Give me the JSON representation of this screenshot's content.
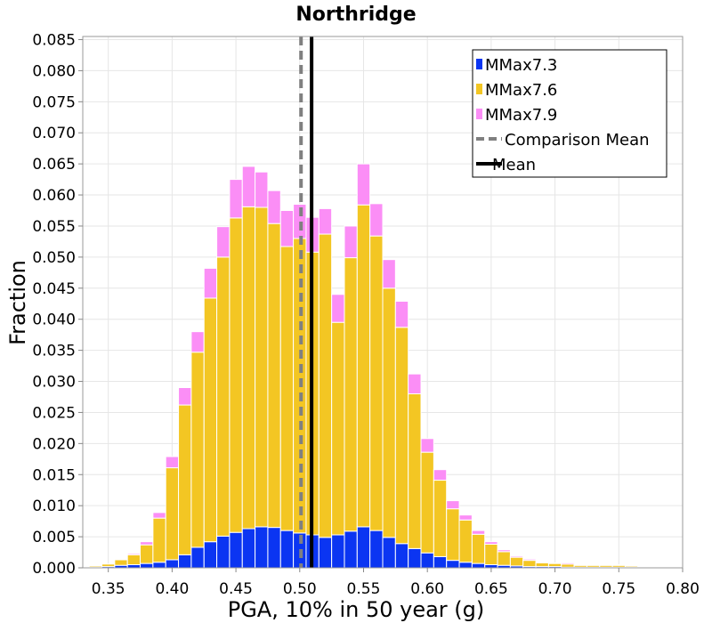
{
  "chart_data": {
    "type": "bar",
    "stacked": true,
    "title": "Northridge",
    "xlabel": "PGA, 10% in 50 year (g)",
    "ylabel": "Fraction",
    "xlim": [
      0.33,
      0.8
    ],
    "ylim": [
      0,
      0.0855
    ],
    "bin_width": 0.01,
    "grid": true,
    "legend_position": "top-right",
    "x_ticks": [
      "0.35",
      "0.40",
      "0.45",
      "0.50",
      "0.55",
      "0.60",
      "0.65",
      "0.70",
      "0.75",
      "0.80"
    ],
    "y_ticks": [
      "0.000",
      "0.005",
      "0.010",
      "0.015",
      "0.020",
      "0.025",
      "0.030",
      "0.035",
      "0.040",
      "0.045",
      "0.050",
      "0.055",
      "0.060",
      "0.065",
      "0.070",
      "0.075",
      "0.080",
      "0.085"
    ],
    "x": [
      0.34,
      0.35,
      0.36,
      0.37,
      0.38,
      0.39,
      0.4,
      0.41,
      0.42,
      0.43,
      0.44,
      0.45,
      0.46,
      0.47,
      0.48,
      0.49,
      0.5,
      0.51,
      0.52,
      0.53,
      0.54,
      0.55,
      0.56,
      0.57,
      0.58,
      0.59,
      0.6,
      0.61,
      0.62,
      0.63,
      0.64,
      0.65,
      0.66,
      0.67,
      0.68,
      0.69,
      0.7,
      0.71,
      0.72,
      0.73,
      0.74,
      0.75,
      0.76,
      0.77,
      0.78
    ],
    "series": [
      {
        "name": "MMax7.3",
        "color": "#0b35f2",
        "values": [
          0.0001,
          0.0002,
          0.0004,
          0.0005,
          0.0007,
          0.0009,
          0.0013,
          0.0021,
          0.0033,
          0.0042,
          0.0051,
          0.0057,
          0.0063,
          0.0066,
          0.0065,
          0.006,
          0.0056,
          0.0053,
          0.0049,
          0.0053,
          0.0059,
          0.0066,
          0.006,
          0.0049,
          0.0039,
          0.0031,
          0.0024,
          0.0018,
          0.0012,
          0.0009,
          0.0007,
          0.0005,
          0.0004,
          0.0003,
          0.0002,
          0.0002,
          0.0002,
          0.0001,
          0.0001,
          0.0001,
          0.0001,
          0.0001,
          0.0001,
          0.0001,
          0.0001
        ]
      },
      {
        "name": "MMax7.6",
        "color": "#f3c623",
        "values": [
          0.0002,
          0.0004,
          0.0009,
          0.0016,
          0.003,
          0.0071,
          0.0148,
          0.0241,
          0.0314,
          0.0392,
          0.0449,
          0.0506,
          0.0518,
          0.0514,
          0.0489,
          0.0457,
          0.0474,
          0.0455,
          0.0488,
          0.0342,
          0.044,
          0.0518,
          0.0474,
          0.0401,
          0.0348,
          0.0249,
          0.0162,
          0.0123,
          0.0083,
          0.0068,
          0.0047,
          0.0033,
          0.0022,
          0.0014,
          0.001,
          0.0006,
          0.0005,
          0.0005,
          0.0003,
          0.0003,
          0.0003,
          0.0003,
          0.0002,
          0.0001,
          0.0001
        ]
      },
      {
        "name": "MMax7.9",
        "color": "#fb8ef6",
        "values": [
          0.0,
          0.0,
          0.0001,
          0.0002,
          0.0005,
          0.0009,
          0.0018,
          0.0028,
          0.0033,
          0.0048,
          0.0049,
          0.0062,
          0.0065,
          0.0057,
          0.0053,
          0.0058,
          0.0055,
          0.0056,
          0.0041,
          0.0045,
          0.0051,
          0.0066,
          0.0052,
          0.0046,
          0.0042,
          0.0032,
          0.0022,
          0.0017,
          0.0013,
          0.0008,
          0.0006,
          0.0004,
          0.0003,
          0.0002,
          0.0002,
          0.0001,
          0.0001,
          0.0002,
          0.0001,
          0.0001,
          0.0001,
          0.0001,
          0.0001,
          0.0001,
          0.0001
        ]
      }
    ],
    "lines": [
      {
        "name": "Comparison Mean",
        "x": 0.501,
        "style": "dashed",
        "color": "#808080"
      },
      {
        "name": "Mean",
        "x": 0.5093,
        "style": "solid",
        "color": "#000000"
      }
    ]
  }
}
